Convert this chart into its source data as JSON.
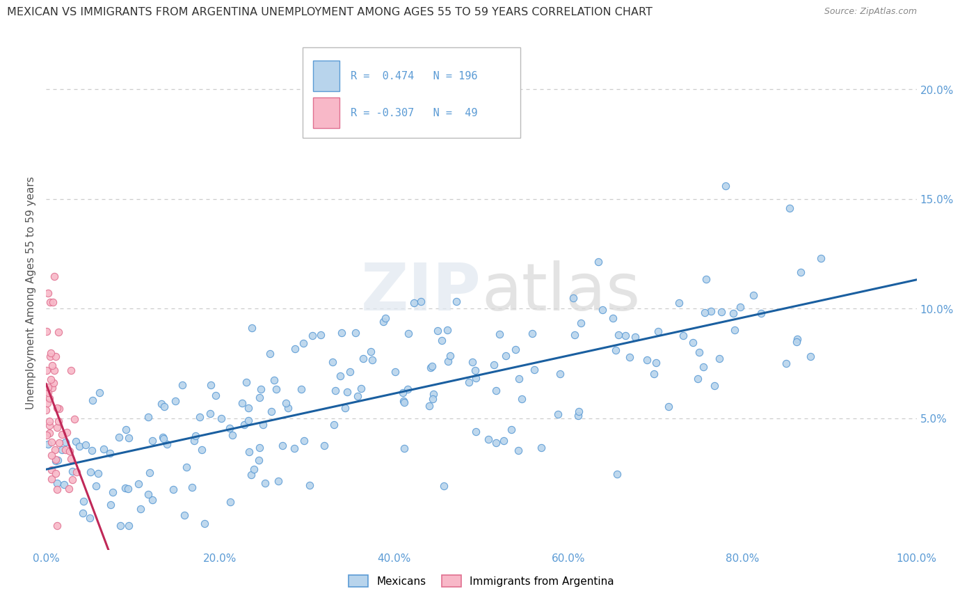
{
  "title": "MEXICAN VS IMMIGRANTS FROM ARGENTINA UNEMPLOYMENT AMONG AGES 55 TO 59 YEARS CORRELATION CHART",
  "source": "Source: ZipAtlas.com",
  "ylabel": "Unemployment Among Ages 55 to 59 years",
  "xlim": [
    0,
    1.0
  ],
  "ylim": [
    -0.01,
    0.225
  ],
  "xticks": [
    0.0,
    0.2,
    0.4,
    0.6,
    0.8,
    1.0
  ],
  "xtick_labels": [
    "0.0%",
    "20.0%",
    "40.0%",
    "60.0%",
    "80.0%",
    "100.0%"
  ],
  "yticks": [
    0.05,
    0.1,
    0.15,
    0.2
  ],
  "ytick_labels": [
    "5.0%",
    "10.0%",
    "15.0%",
    "20.0%"
  ],
  "mexican_color": "#b8d4ec",
  "argentina_color": "#f8b8c8",
  "mexican_edge": "#5b9bd5",
  "argentina_edge": "#e07090",
  "trend_mexican_color": "#1a5fa0",
  "trend_argentina_color": "#c02858",
  "R_mexican": 0.474,
  "N_mexican": 196,
  "R_argentina": -0.307,
  "N_argentina": 49,
  "watermark_zip": "ZIP",
  "watermark_atlas": "atlas",
  "background_color": "#ffffff",
  "grid_color": "#cccccc",
  "axis_color": "#5b9bd5",
  "tick_color": "#5b9bd5"
}
